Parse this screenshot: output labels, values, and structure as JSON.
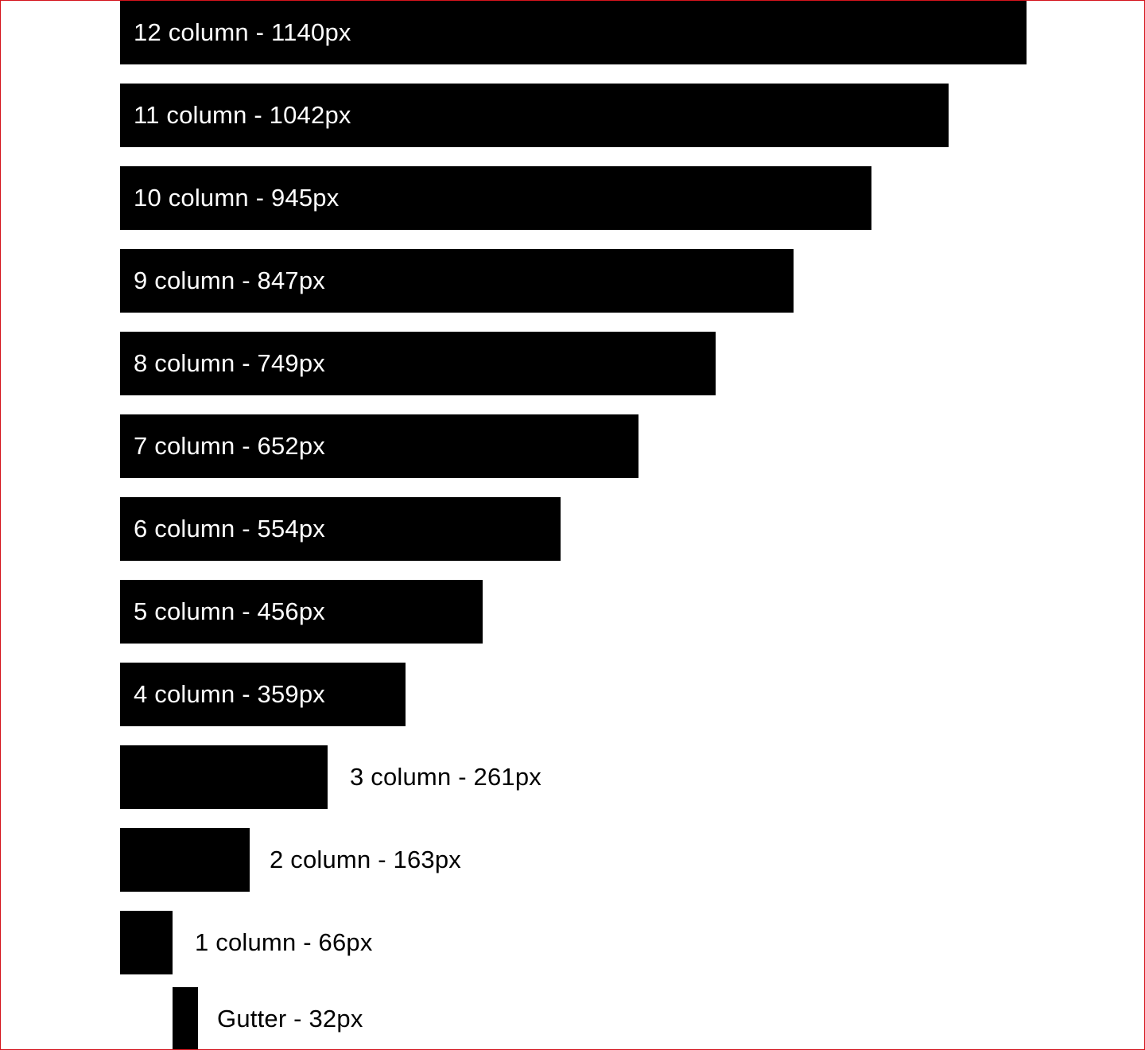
{
  "colors": {
    "bar": "#000000",
    "frame_border": "#d4141c",
    "background": "#ffffff"
  },
  "grid_columns": [
    {
      "columns": 12,
      "width": 1140,
      "label": "12 column - 1140px"
    },
    {
      "columns": 11,
      "width": 1042,
      "label": "11 column - 1042px"
    },
    {
      "columns": 10,
      "width": 945,
      "label": "10 column - 945px"
    },
    {
      "columns": 9,
      "width": 847,
      "label": "9 column - 847px"
    },
    {
      "columns": 8,
      "width": 749,
      "label": "8 column - 749px"
    },
    {
      "columns": 7,
      "width": 652,
      "label": "7 column - 652px"
    },
    {
      "columns": 6,
      "width": 554,
      "label": "6 column - 554px"
    },
    {
      "columns": 5,
      "width": 456,
      "label": "5 column - 456px"
    },
    {
      "columns": 4,
      "width": 359,
      "label": "4 column - 359px"
    },
    {
      "columns": 3,
      "width": 261,
      "label": "3 column - 261px"
    },
    {
      "columns": 2,
      "width": 163,
      "label": "2 column - 163px"
    },
    {
      "columns": 1,
      "width": 66,
      "label": "1 column - 66px"
    }
  ],
  "gutter": {
    "width": 32,
    "label": "Gutter - 32px"
  }
}
